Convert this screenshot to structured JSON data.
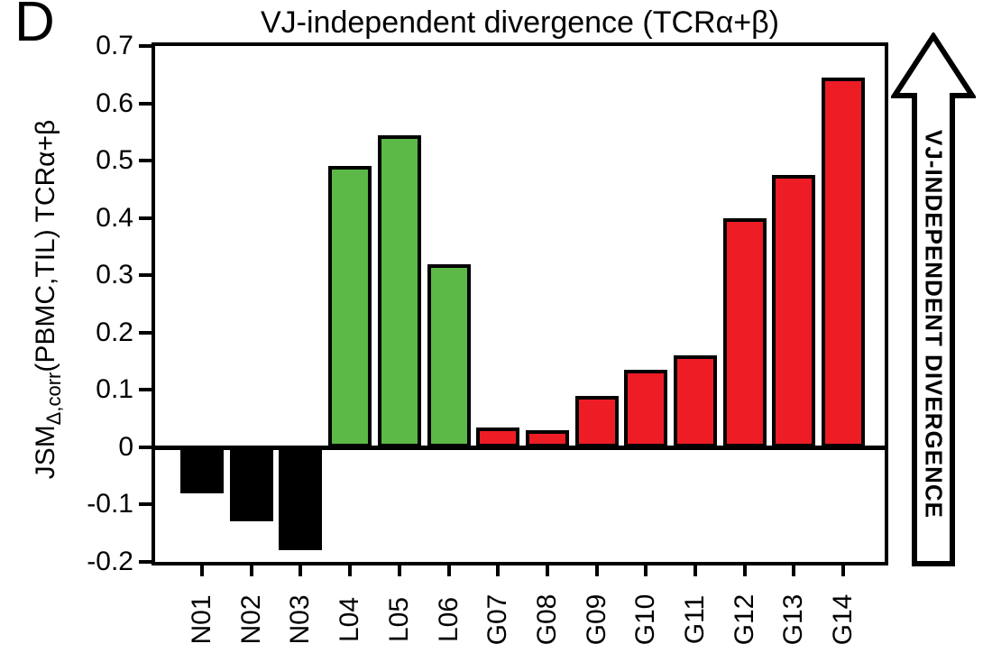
{
  "panel_label": "D",
  "title": "VJ-independent divergence (TCRα+β)",
  "y_axis": {
    "label_main": "JSM",
    "label_sub": "Δ,corr",
    "label_rest": "(PBMC,TIL) TCRα+β",
    "tick_labels": [
      "0.7",
      "0.6",
      "0.5",
      "0.4",
      "0.3",
      "0.2",
      "0.1",
      "0",
      "-0.1",
      "-0.2"
    ]
  },
  "arrow_label": "VJ-INDEPENDENT DIVERGENCE",
  "colors": {
    "normal_group": "#000000",
    "lung_group": "#5cb847",
    "gbm_group": "#ee1c25",
    "axis": "#000000",
    "background": "#ffffff"
  },
  "chart_data": {
    "type": "bar",
    "title": "VJ-independent divergence (TCRα+β)",
    "xlabel": "",
    "ylabel": "JSM Δ,corr (PBMC,TIL) TCRα+β",
    "ylim": [
      -0.2,
      0.7
    ],
    "grid": false,
    "legend": false,
    "categories": [
      "N01",
      "N02",
      "N03",
      "L04",
      "L05",
      "L06",
      "G07",
      "G08",
      "G09",
      "G10",
      "G11",
      "G12",
      "G13",
      "G14"
    ],
    "values": [
      -0.08,
      -0.13,
      -0.18,
      0.49,
      0.545,
      0.32,
      0.035,
      0.03,
      0.09,
      0.135,
      0.16,
      0.4,
      0.475,
      0.645
    ],
    "bar_colors": [
      "#000000",
      "#000000",
      "#000000",
      "#5cb847",
      "#5cb847",
      "#5cb847",
      "#ee1c25",
      "#ee1c25",
      "#ee1c25",
      "#ee1c25",
      "#ee1c25",
      "#ee1c25",
      "#ee1c25",
      "#ee1c25"
    ],
    "yticks": [
      "0.7",
      "0.6",
      "0.5",
      "0.4",
      "0.3",
      "0.2",
      "0.1",
      "0",
      "-0.1",
      "-0.2"
    ],
    "annotations": [
      "VJ-INDEPENDENT DIVERGENCE"
    ]
  }
}
